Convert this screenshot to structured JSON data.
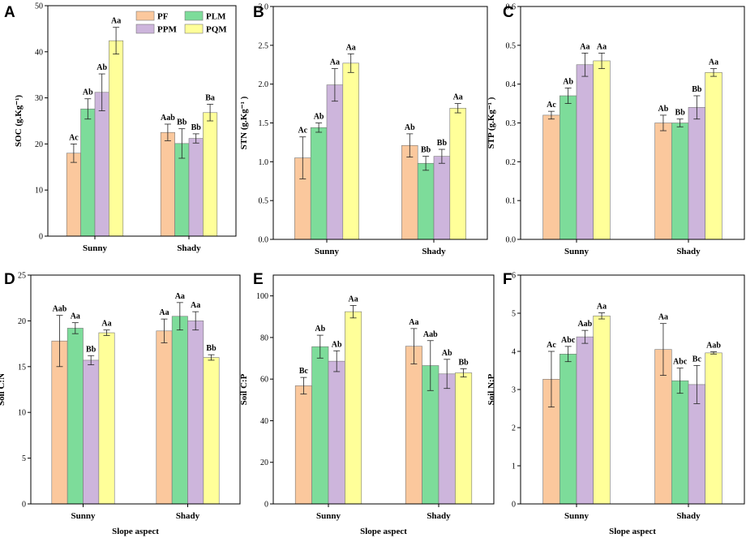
{
  "figure": {
    "series_names": [
      "PF",
      "PLM",
      "PPM",
      "PQM"
    ],
    "colors": {
      "PF": "#FBC89D",
      "PLM": "#7DDC9A",
      "PPM": "#CDB5DC",
      "PQM": "#FFFF99"
    },
    "x_axis_title": "Slope aspect"
  },
  "chart_data": [
    {
      "panel": "A",
      "type": "bar",
      "ylabel": "SOC (g.Kg⁻¹)",
      "categories": [
        "Sunny",
        "Shady"
      ],
      "ylim": [
        0,
        50
      ],
      "ticks": [
        0,
        10,
        20,
        30,
        40,
        50
      ],
      "tick_labels": [
        "0",
        "10",
        "20",
        "30",
        "40",
        "50"
      ],
      "series": [
        {
          "name": "PF",
          "values": [
            18.0,
            22.5
          ],
          "errors": [
            2.0,
            1.8
          ],
          "labels": [
            "Ac",
            "Aab"
          ]
        },
        {
          "name": "PLM",
          "values": [
            27.6,
            20.1
          ],
          "errors": [
            2.2,
            3.2
          ],
          "labels": [
            "Ab",
            "Bb"
          ]
        },
        {
          "name": "PPM",
          "values": [
            31.2,
            21.2
          ],
          "errors": [
            4.0,
            1.0
          ],
          "labels": [
            "Ab",
            "Bb"
          ]
        },
        {
          "name": "PQM",
          "values": [
            42.4,
            26.8
          ],
          "errors": [
            2.9,
            1.8
          ],
          "labels": [
            "Aa",
            "Ba"
          ]
        }
      ],
      "legend": "top-right",
      "xlabel": ""
    },
    {
      "panel": "B",
      "type": "bar",
      "ylabel": "STN (g.Kg⁻¹ )",
      "categories": [
        "Sunny",
        "Shady"
      ],
      "ylim": [
        0,
        3.0
      ],
      "ticks": [
        0,
        0.5,
        1.0,
        1.5,
        2.0,
        2.5,
        3.0
      ],
      "tick_labels": [
        "0.0",
        "0.5",
        "1.0",
        "1.5",
        "2.0",
        "2.5",
        "3.0"
      ],
      "series": [
        {
          "name": "PF",
          "values": [
            1.05,
            1.21
          ],
          "errors": [
            0.27,
            0.15
          ],
          "labels": [
            "Ac",
            "Ab"
          ]
        },
        {
          "name": "PLM",
          "values": [
            1.44,
            0.98
          ],
          "errors": [
            0.06,
            0.09
          ],
          "labels": [
            "Ab",
            "Bb"
          ]
        },
        {
          "name": "PPM",
          "values": [
            1.99,
            1.07
          ],
          "errors": [
            0.21,
            0.09
          ],
          "labels": [
            "Aa",
            "Bb"
          ]
        },
        {
          "name": "PQM",
          "values": [
            2.27,
            1.69
          ],
          "errors": [
            0.12,
            0.06
          ],
          "labels": [
            "Aa",
            "Aa"
          ]
        }
      ],
      "xlabel": ""
    },
    {
      "panel": "C",
      "type": "bar",
      "ylabel": "STP (g.Kg⁻¹ )",
      "categories": [
        "Sunny",
        "Shady"
      ],
      "ylim": [
        0,
        0.6
      ],
      "ticks": [
        0,
        0.1,
        0.2,
        0.3,
        0.4,
        0.5,
        0.6
      ],
      "tick_labels": [
        "0.0",
        "0.1",
        "0.2",
        "0.3",
        "0.4",
        "0.5",
        "0.6"
      ],
      "series": [
        {
          "name": "PF",
          "values": [
            0.32,
            0.3
          ],
          "errors": [
            0.01,
            0.02
          ],
          "labels": [
            "Ac",
            "Ab"
          ]
        },
        {
          "name": "PLM",
          "values": [
            0.37,
            0.3
          ],
          "errors": [
            0.02,
            0.01
          ],
          "labels": [
            "Ab",
            "Bb"
          ]
        },
        {
          "name": "PPM",
          "values": [
            0.45,
            0.34
          ],
          "errors": [
            0.03,
            0.03
          ],
          "labels": [
            "Aa",
            "Bb"
          ]
        },
        {
          "name": "PQM",
          "values": [
            0.46,
            0.43
          ],
          "errors": [
            0.02,
            0.01
          ],
          "labels": [
            "Aa",
            "Aa"
          ]
        }
      ],
      "xlabel": ""
    },
    {
      "panel": "D",
      "type": "bar",
      "ylabel": "Soil C:N",
      "categories": [
        "Sunny",
        "Shady"
      ],
      "ylim": [
        0,
        25
      ],
      "ticks": [
        0,
        5,
        10,
        15,
        20,
        25
      ],
      "tick_labels": [
        "0",
        "5",
        "10",
        "15",
        "20",
        "25"
      ],
      "series": [
        {
          "name": "PF",
          "values": [
            17.8,
            18.9
          ],
          "errors": [
            2.8,
            1.3
          ],
          "labels": [
            "Aab",
            "Aa"
          ]
        },
        {
          "name": "PLM",
          "values": [
            19.2,
            20.5
          ],
          "errors": [
            0.6,
            1.5
          ],
          "labels": [
            "Aa",
            "Aa"
          ]
        },
        {
          "name": "PPM",
          "values": [
            15.7,
            20.0
          ],
          "errors": [
            0.5,
            1.0
          ],
          "labels": [
            "Bb",
            "Aa"
          ]
        },
        {
          "name": "PQM",
          "values": [
            18.7,
            16.0
          ],
          "errors": [
            0.3,
            0.3
          ],
          "labels": [
            "Aa",
            "Bb"
          ]
        }
      ],
      "xlabel": "Slope aspect"
    },
    {
      "panel": "E",
      "type": "bar",
      "ylabel": "Soil C:P",
      "categories": [
        "Sunny",
        "Shady"
      ],
      "ylim": [
        0,
        110
      ],
      "ticks": [
        0,
        20,
        40,
        60,
        80,
        100
      ],
      "tick_labels": [
        "0",
        "20",
        "40",
        "60",
        "80",
        "100"
      ],
      "series": [
        {
          "name": "PF",
          "values": [
            56.8,
            75.8
          ],
          "errors": [
            4.0,
            8.5
          ],
          "labels": [
            "Bc",
            "Aa"
          ]
        },
        {
          "name": "PLM",
          "values": [
            75.6,
            66.5
          ],
          "errors": [
            5.5,
            12.0
          ],
          "labels": [
            "Ab",
            "Aab"
          ]
        },
        {
          "name": "PPM",
          "values": [
            68.6,
            62.5
          ],
          "errors": [
            5.0,
            7.0
          ],
          "labels": [
            "Ab",
            "Ab"
          ]
        },
        {
          "name": "PQM",
          "values": [
            92.4,
            63.0
          ],
          "errors": [
            3.0,
            2.0
          ],
          "labels": [
            "Aa",
            "Bb"
          ]
        }
      ],
      "xlabel": "Slope aspect"
    },
    {
      "panel": "F",
      "type": "bar",
      "ylabel": "Soil N:P",
      "categories": [
        "Sunny",
        "Shady"
      ],
      "ylim": [
        0,
        6
      ],
      "ticks": [
        0,
        1,
        2,
        3,
        4,
        5,
        6
      ],
      "tick_labels": [
        "0",
        "1",
        "2",
        "3",
        "4",
        "5",
        "6"
      ],
      "series": [
        {
          "name": "PF",
          "values": [
            3.27,
            4.05
          ],
          "errors": [
            0.73,
            0.68
          ],
          "labels": [
            "Ac",
            "Aa"
          ]
        },
        {
          "name": "PLM",
          "values": [
            3.93,
            3.23
          ],
          "errors": [
            0.2,
            0.33
          ],
          "labels": [
            "Abc",
            "Abc"
          ]
        },
        {
          "name": "PPM",
          "values": [
            4.38,
            3.13
          ],
          "errors": [
            0.17,
            0.5
          ],
          "labels": [
            "Aab",
            "Bc"
          ]
        },
        {
          "name": "PQM",
          "values": [
            4.93,
            3.96
          ],
          "errors": [
            0.08,
            0.03
          ],
          "labels": [
            "Aa",
            "Aab"
          ]
        }
      ],
      "xlabel": "Slope aspect"
    }
  ]
}
